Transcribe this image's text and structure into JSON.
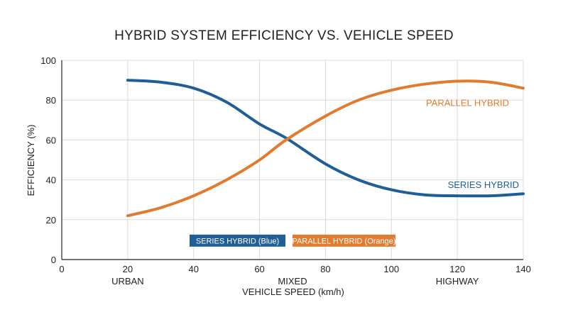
{
  "chart_data": {
    "type": "line",
    "title": "HYBRID SYSTEM EFFICIENCY VS. VEHICLE SPEED",
    "xlabel": "VEHICLE SPEED (km/h)",
    "ylabel": "EFFICIENCY (%)",
    "xlim": [
      0,
      140
    ],
    "ylim": [
      0,
      100
    ],
    "xticks": [
      0,
      20,
      40,
      60,
      80,
      100,
      120,
      140
    ],
    "yticks": [
      0,
      20,
      40,
      60,
      80,
      100
    ],
    "grid": true,
    "zones": [
      {
        "x": 20,
        "label": "URBAN"
      },
      {
        "x": 70,
        "label": "MIXED"
      },
      {
        "x": 120,
        "label": "HIGHWAY"
      }
    ],
    "series": [
      {
        "name": "SERIES HYBRID",
        "color": "#1f5f96",
        "x": [
          20,
          30,
          40,
          50,
          60,
          68,
          80,
          90,
          100,
          110,
          120,
          130,
          140
        ],
        "y": [
          90,
          89,
          86,
          79,
          68,
          61,
          48,
          40,
          35,
          32.5,
          32,
          32,
          33
        ]
      },
      {
        "name": "PARALLEL HYBRID",
        "color": "#e07b2f",
        "x": [
          20,
          30,
          40,
          50,
          60,
          68,
          80,
          90,
          100,
          110,
          120,
          130,
          140
        ],
        "y": [
          22,
          26,
          32,
          40,
          50,
          60,
          72,
          80,
          85,
          88,
          89.5,
          89,
          86
        ]
      }
    ],
    "legend": {
      "placement": "bottom-center",
      "entries": [
        {
          "label": "SERIES HYBRID (Blue)",
          "color": "#1f5f96"
        },
        {
          "label": "PARALLEL HYBRID (Orange)",
          "color": "#e07b2f"
        }
      ]
    }
  }
}
